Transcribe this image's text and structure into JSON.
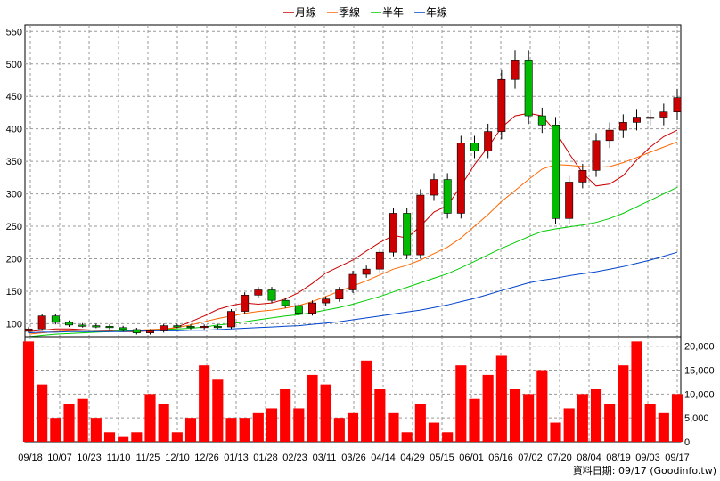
{
  "chart_data": [
    {
      "type": "candlestick",
      "legend_placement": "top-center",
      "series": [
        {
          "name": "月線",
          "color": "#cc0000",
          "values": [
            88,
            90,
            92,
            92,
            91,
            90,
            89,
            88,
            88,
            89,
            90,
            95,
            103,
            112,
            122,
            128,
            132,
            130,
            132,
            138,
            148,
            162,
            178,
            188,
            198,
            212,
            225,
            236,
            232,
            250,
            272,
            282,
            312,
            345,
            372,
            402,
            420,
            424,
            420,
            396,
            362,
            332,
            312,
            315,
            328,
            352,
            372,
            388,
            398
          ]
        },
        {
          "name": "季線",
          "color": "#ff6600",
          "values": [
            84,
            86,
            88,
            89,
            90,
            90,
            90,
            90,
            90,
            91,
            92,
            94,
            98,
            103,
            108,
            112,
            116,
            119,
            121,
            124,
            128,
            134,
            142,
            150,
            158,
            166,
            175,
            184,
            190,
            198,
            208,
            218,
            232,
            250,
            268,
            288,
            305,
            322,
            338,
            345,
            344,
            342,
            341,
            342,
            348,
            356,
            364,
            372,
            380
          ]
        },
        {
          "name": "半年",
          "color": "#00cc00",
          "values": [
            80,
            82,
            84,
            85,
            86,
            87,
            88,
            89,
            89,
            90,
            91,
            92,
            93,
            95,
            98,
            100,
            103,
            106,
            109,
            112,
            114,
            117,
            121,
            125,
            130,
            136,
            142,
            149,
            156,
            163,
            170,
            177,
            186,
            196,
            206,
            216,
            225,
            234,
            242,
            246,
            249,
            252,
            256,
            262,
            270,
            280,
            290,
            300,
            310
          ]
        },
        {
          "name": "年線",
          "color": "#0044cc",
          "values": [
            86,
            87,
            87,
            88,
            88,
            88,
            88,
            88,
            89,
            89,
            89,
            89,
            90,
            90,
            91,
            92,
            93,
            94,
            95,
            96,
            97,
            99,
            101,
            103,
            106,
            109,
            112,
            115,
            118,
            121,
            125,
            129,
            134,
            139,
            145,
            151,
            157,
            163,
            167,
            170,
            174,
            177,
            180,
            184,
            188,
            193,
            198,
            204,
            210
          ]
        }
      ],
      "close": [
        92,
        112,
        102,
        98,
        97,
        96,
        94,
        91,
        86,
        89,
        97,
        96,
        94,
        96,
        95,
        119,
        144,
        152,
        136,
        128,
        116,
        132,
        138,
        152,
        176,
        184,
        210,
        270,
        206,
        298,
        322,
        270,
        378,
        366,
        396,
        476,
        506,
        420,
        406,
        262,
        318,
        336,
        382,
        398,
        410,
        418,
        418,
        426,
        448
      ],
      "volume_thousands": [
        21,
        12,
        5,
        8,
        9,
        5,
        2,
        1,
        2,
        10,
        8,
        2,
        5,
        16,
        13,
        5,
        5,
        6,
        7,
        11,
        7,
        14,
        12,
        5,
        6,
        17,
        11,
        6,
        2,
        8,
        4,
        2,
        16,
        9,
        14,
        18,
        11,
        10,
        15,
        4,
        7,
        10,
        11,
        8,
        16,
        21,
        8,
        6,
        10
      ],
      "x_tick_labels": [
        "09/18",
        "10/07",
        "10/23",
        "11/10",
        "11/25",
        "12/10",
        "12/26",
        "01/13",
        "01/28",
        "02/23",
        "03/11",
        "03/26",
        "04/14",
        "04/29",
        "05/15",
        "06/01",
        "06/16",
        "07/02",
        "07/20",
        "08/04",
        "08/19",
        "09/03",
        "09/17"
      ],
      "price_ticks": [
        100,
        150,
        200,
        250,
        300,
        350,
        400,
        450,
        500,
        550
      ],
      "price_ylim": [
        80,
        560
      ],
      "volume_ticks": [
        "0",
        "5,000",
        "10,000",
        "15,000",
        "20,000"
      ],
      "volume_ylim": [
        0,
        22
      ],
      "grid": true,
      "colors": {
        "up": "#cc0000",
        "down": "#00bb00",
        "volume": "#ff0000",
        "background": "#ffffff",
        "grid": "#999999"
      }
    }
  ],
  "footer": {
    "source_text": "資料日期: 09/17 (Goodinfo.tw)"
  }
}
